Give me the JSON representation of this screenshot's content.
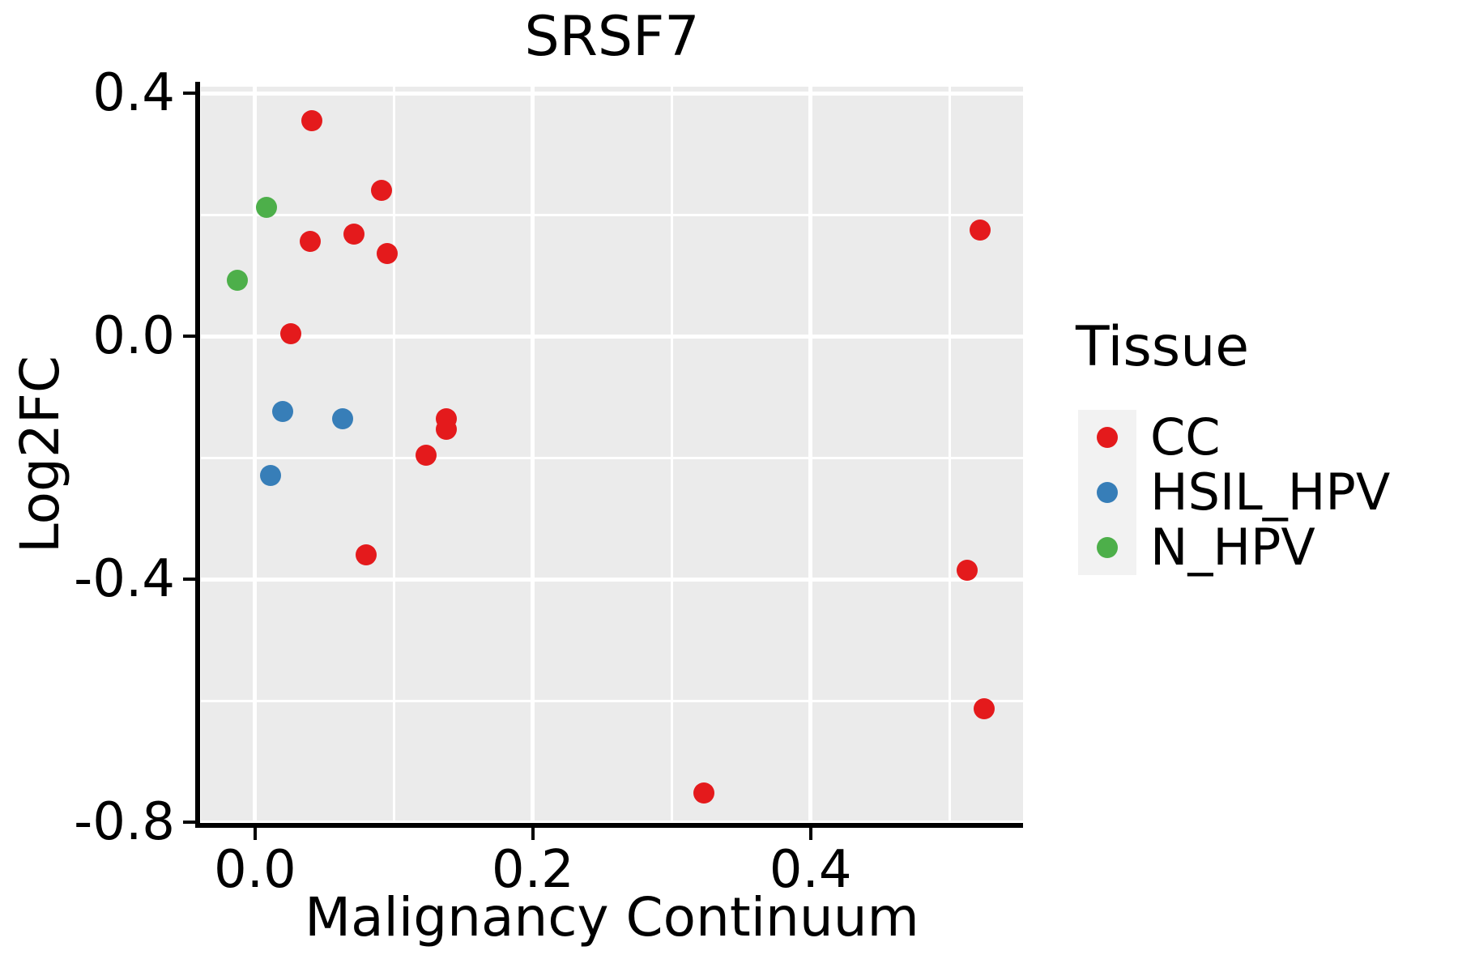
{
  "title": "SRSF7",
  "legend": {
    "title": "Tissue",
    "position": "right"
  },
  "colors": {
    "red": "#E41A1C",
    "blue": "#377EB8",
    "green": "#4DAF4A",
    "panel_bg": "#EBEBEB",
    "grid": "#FFFFFF",
    "legend_key_bg": "#F2F2F2",
    "text": "#000000",
    "axis": "#000000"
  },
  "chart_data": {
    "type": "scatter",
    "title": "SRSF7",
    "xlabel": "Malignancy Continuum",
    "ylabel": "Log2FC",
    "legend_title": "Tissue",
    "legend_position": "right",
    "grid": true,
    "x_axis": {
      "ticks": [
        0.0,
        0.2,
        0.4
      ],
      "tick_labels": [
        "0.0",
        "0.2",
        "0.4"
      ],
      "minor_ticks": [
        0.1,
        0.3,
        0.5
      ],
      "range": [
        -0.039,
        0.553
      ]
    },
    "y_axis": {
      "ticks": [
        0.4,
        0.0,
        -0.4,
        -0.8
      ],
      "tick_labels": [
        "0.4",
        "0.0",
        "-0.4",
        "-0.8"
      ],
      "minor_ticks": [
        0.2,
        -0.2,
        -0.6
      ],
      "range": [
        -0.801,
        0.411
      ]
    },
    "series": [
      {
        "name": "CC",
        "color_key": "red",
        "points": [
          [
            0.041,
            0.355
          ],
          [
            0.091,
            0.24
          ],
          [
            0.071,
            0.169
          ],
          [
            0.04,
            0.157
          ],
          [
            0.095,
            0.137
          ],
          [
            0.026,
            0.004
          ],
          [
            0.138,
            -0.135
          ],
          [
            0.138,
            -0.153
          ],
          [
            0.123,
            -0.196
          ],
          [
            0.08,
            -0.36
          ],
          [
            0.323,
            -0.752
          ],
          [
            0.522,
            0.175
          ],
          [
            0.513,
            -0.385
          ],
          [
            0.525,
            -0.613
          ]
        ]
      },
      {
        "name": "HSIL_HPV",
        "color_key": "blue",
        "points": [
          [
            0.02,
            -0.123
          ],
          [
            0.063,
            -0.135
          ],
          [
            0.011,
            -0.229
          ]
        ]
      },
      {
        "name": "N_HPV",
        "color_key": "green",
        "points": [
          [
            0.008,
            0.212
          ],
          [
            -0.013,
            0.093
          ]
        ]
      }
    ]
  }
}
